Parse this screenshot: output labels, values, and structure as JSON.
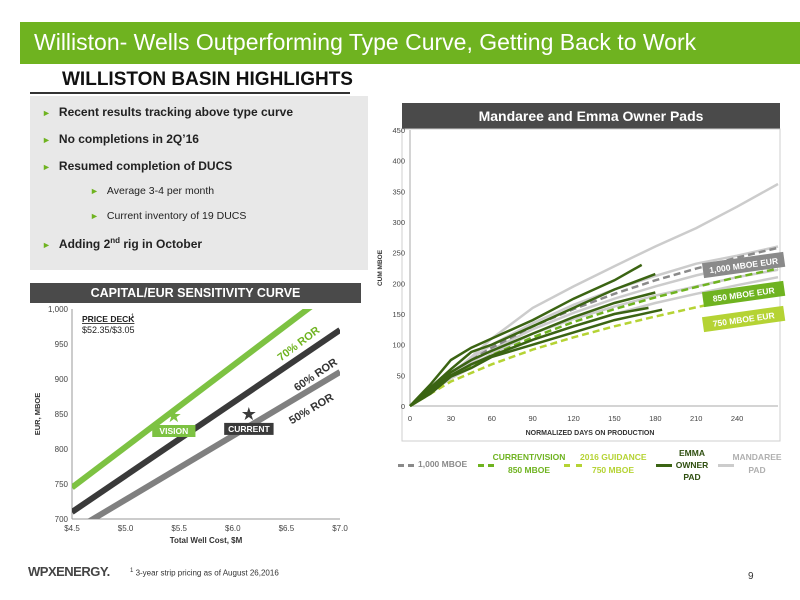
{
  "title": "Williston- Wells Outperforming Type Curve, Getting Back to Work",
  "highlights_heading": "WILLISTON BASIN HIGHLIGHTS",
  "bullets": [
    {
      "text": "Recent results tracking above type curve"
    },
    {
      "text": "No completions in 2Q’16"
    },
    {
      "text": "Resumed completion of DUCS"
    },
    {
      "text": "Average 3-4 per month"
    },
    {
      "text": "Current inventory of 19 DUCS"
    },
    {
      "text_pre": "Adding 2",
      "sup": "nd",
      "text_post": " rig in October"
    }
  ],
  "footnote": {
    "sup": "1",
    "text": " 3-year strip pricing as of August 26,2016"
  },
  "logo": "WPXENERGY.",
  "page_number": "9",
  "colors": {
    "accent": "#6fb320",
    "dark_bar": "#4a4a4a"
  },
  "chart_data": [
    {
      "type": "line",
      "title": "CAPITAL/EUR SENSITIVITY CURVE",
      "xlabel": "Total Well Cost, $M",
      "ylabel": "EUR, MBOE",
      "xlim": [
        4.5,
        7.0
      ],
      "ylim": [
        700,
        1000
      ],
      "x_ticks": [
        "$4.5",
        "$5.0",
        "$5.5",
        "$6.0",
        "$6.5",
        "$7.0"
      ],
      "y_ticks": [
        "700",
        "750",
        "800",
        "850",
        "900",
        "950",
        "1,000"
      ],
      "annotation": {
        "title": "PRICE DECK",
        "sup": "1",
        "value": "$52.35/$3.05"
      },
      "series": [
        {
          "name": "70% ROR",
          "color": "#7dc242",
          "x": [
            4.5,
            7.0
          ],
          "y": [
            745,
            1035
          ]
        },
        {
          "name": "60% ROR",
          "color": "#3a3a3a",
          "x": [
            4.5,
            7.0
          ],
          "y": [
            710,
            970
          ]
        },
        {
          "name": "50% ROR",
          "color": "#808080",
          "x": [
            4.5,
            7.0
          ],
          "y": [
            682,
            910
          ]
        }
      ],
      "points": [
        {
          "label": "VISION",
          "x": 5.45,
          "y": 850,
          "color": "#7dc242"
        },
        {
          "label": "CURRENT",
          "x": 6.15,
          "y": 853,
          "color": "#3a3a3a"
        }
      ]
    },
    {
      "type": "line",
      "title": "Mandaree and Emma Owner Pads",
      "xlabel": "NORMALIZED DAYS ON PRODUCTION",
      "ylabel": "CUM MBOE",
      "xlim": [
        0,
        270
      ],
      "ylim": [
        0,
        450
      ],
      "x_ticks": [
        0,
        30,
        60,
        90,
        120,
        150,
        180,
        210,
        240
      ],
      "y_ticks": [
        0,
        50,
        100,
        150,
        200,
        250,
        300,
        350,
        400,
        450
      ],
      "type_curves": [
        {
          "label": "1,000 MBOE EUR",
          "color": "#8a8a8a",
          "dash": true,
          "x": [
            0,
            30,
            60,
            90,
            120,
            150,
            180,
            210,
            240,
            270
          ],
          "y": [
            0,
            55,
            95,
            130,
            158,
            183,
            205,
            224,
            242,
            258
          ]
        },
        {
          "label": "850 MBOE EUR",
          "color": "#6fb320",
          "dash": true,
          "x": [
            0,
            30,
            60,
            90,
            120,
            150,
            180,
            210,
            240,
            270
          ],
          "y": [
            0,
            48,
            83,
            112,
            137,
            158,
            177,
            194,
            210,
            224
          ]
        },
        {
          "label": "750 MBOE EUR",
          "color": "#b5d334",
          "dash": true,
          "x": [
            0,
            30,
            60,
            90,
            120,
            150,
            180,
            210,
            240,
            270
          ],
          "y": [
            0,
            40,
            68,
            92,
            112,
            130,
            146,
            161,
            175,
            188
          ]
        }
      ],
      "emma_wells": [
        {
          "x": [
            0,
            15,
            30,
            45,
            60,
            90,
            120,
            150,
            170
          ],
          "y": [
            0,
            35,
            75,
            95,
            110,
            140,
            175,
            205,
            230
          ]
        },
        {
          "x": [
            0,
            15,
            30,
            45,
            60,
            90,
            120,
            150,
            180
          ],
          "y": [
            0,
            30,
            60,
            88,
            100,
            130,
            160,
            190,
            215
          ]
        },
        {
          "x": [
            0,
            15,
            30,
            45,
            60,
            90,
            120,
            150,
            180
          ],
          "y": [
            0,
            28,
            55,
            75,
            90,
            118,
            145,
            168,
            185
          ]
        },
        {
          "x": [
            0,
            15,
            30,
            45,
            60,
            90,
            120,
            150,
            175
          ],
          "y": [
            0,
            25,
            50,
            68,
            82,
            108,
            130,
            150,
            160
          ]
        },
        {
          "x": [
            0,
            15,
            30,
            45,
            60,
            90,
            120,
            150,
            185
          ],
          "y": [
            0,
            20,
            48,
            62,
            80,
            100,
            120,
            140,
            157
          ]
        }
      ],
      "mandaree_wells": [
        {
          "x": [
            0,
            30,
            60,
            90,
            120,
            150,
            180,
            210,
            240,
            270
          ],
          "y": [
            0,
            50,
            110,
            160,
            195,
            228,
            260,
            290,
            325,
            362
          ]
        },
        {
          "x": [
            0,
            30,
            60,
            90,
            120,
            150,
            180,
            210,
            240,
            270
          ],
          "y": [
            0,
            55,
            100,
            135,
            165,
            190,
            212,
            232,
            245,
            260
          ]
        },
        {
          "x": [
            0,
            30,
            60,
            90,
            120,
            150,
            180,
            210,
            240,
            270
          ],
          "y": [
            0,
            50,
            92,
            125,
            152,
            175,
            195,
            213,
            228,
            240
          ]
        },
        {
          "x": [
            0,
            30,
            60,
            90,
            120,
            150,
            180,
            210,
            240,
            270
          ],
          "y": [
            0,
            48,
            85,
            118,
            142,
            162,
            180,
            195,
            210,
            222
          ]
        },
        {
          "x": [
            0,
            30,
            60,
            90,
            120,
            150,
            180,
            210,
            240,
            270
          ],
          "y": [
            0,
            45,
            80,
            108,
            130,
            150,
            168,
            183,
            197,
            210
          ]
        }
      ],
      "legend": [
        {
          "lines": [
            "1,000 MBOE"
          ],
          "color": "#8a8a8a",
          "dash": true
        },
        {
          "lines": [
            "CURRENT/VISION",
            "850 MBOE"
          ],
          "color": "#6fb320",
          "dash": true
        },
        {
          "lines": [
            "2016 GUIDANCE",
            "750 MBOE"
          ],
          "color": "#b5d334",
          "dash": true
        },
        {
          "lines": [
            "EMMA",
            "OWNER",
            "PAD"
          ],
          "color": "#3b6413",
          "dash": false
        },
        {
          "lines": [
            "MANDAREE",
            "PAD"
          ],
          "color": "#cccccc",
          "dash": false
        }
      ]
    }
  ]
}
